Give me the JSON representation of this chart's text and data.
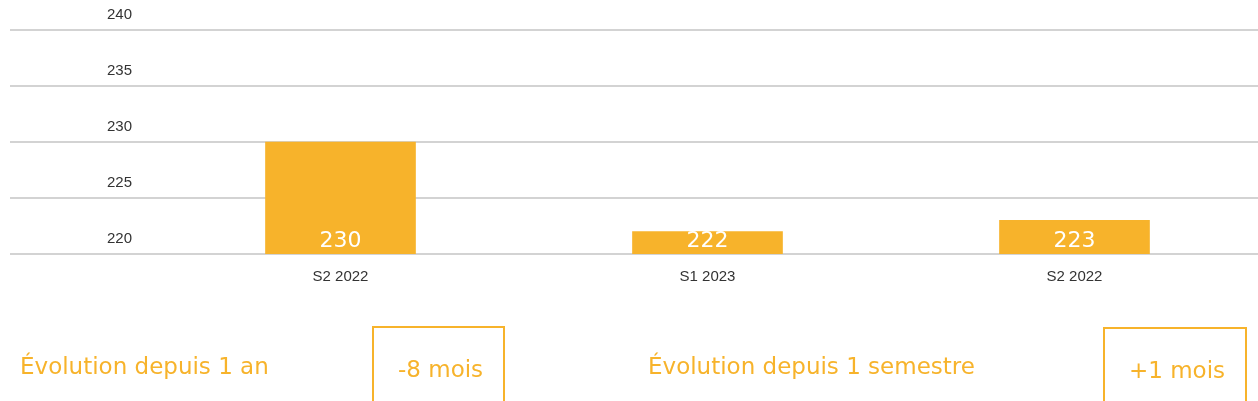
{
  "chart_data": {
    "type": "bar",
    "categories": [
      "S2 2022",
      "S1 2023",
      "S2 2022"
    ],
    "values": [
      230,
      222,
      223
    ],
    "color": "#f7b32b",
    "ylim": [
      220,
      240
    ],
    "yticks": [
      220,
      225,
      230,
      235,
      240
    ],
    "grid": "y",
    "legend": false,
    "data_labels": true,
    "annotations": [
      "Évolution depuis 1 an",
      "-8 mois",
      "Évolution depuis 1 semestre",
      "+1 mois"
    ]
  }
}
